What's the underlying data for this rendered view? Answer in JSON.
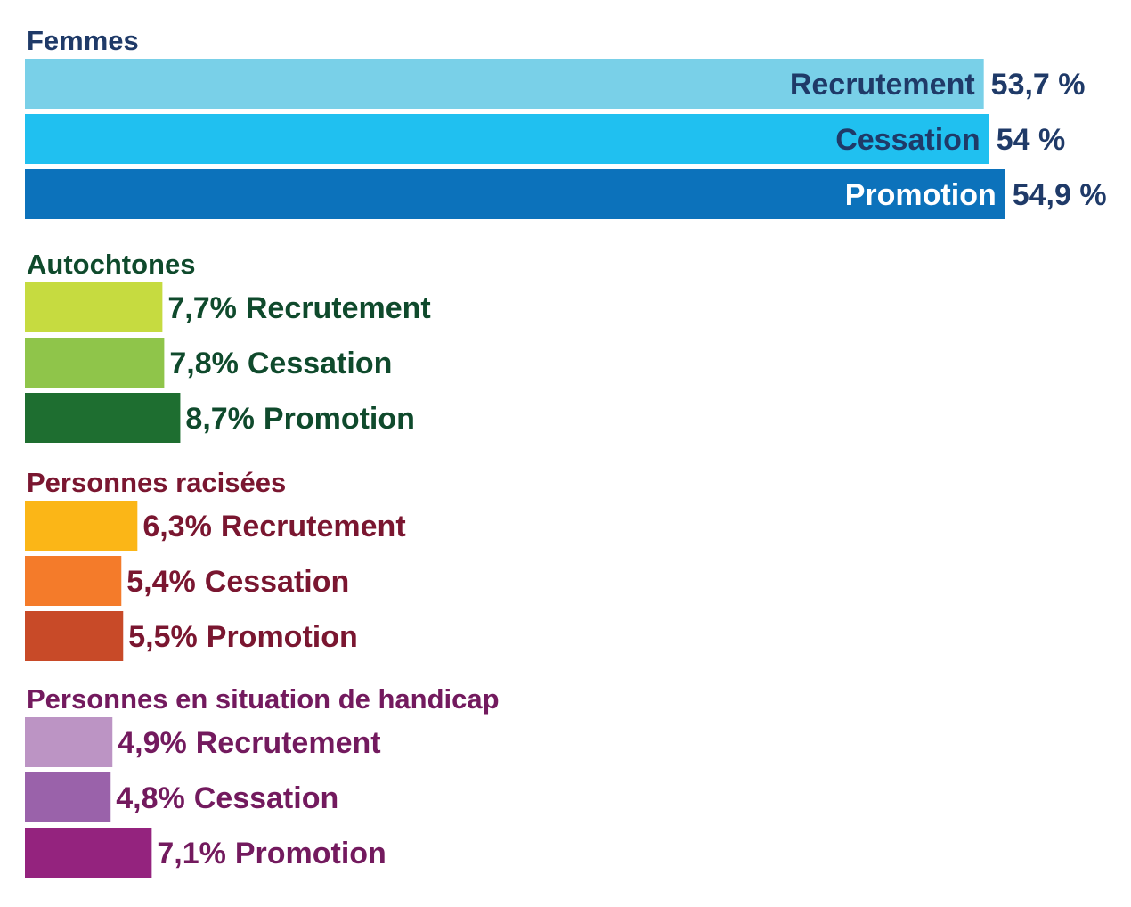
{
  "chart_data": [
    {
      "type": "bar",
      "title": "Femmes",
      "title_color": "#1f3a68",
      "label_color": "#1f3a68",
      "label_style": "category-inside-value-outside",
      "categories": [
        "Recrutement",
        "Cessation",
        "Promotion"
      ],
      "values": [
        53.7,
        54,
        54.9
      ],
      "value_labels": [
        "53,7 %",
        "54 %",
        "54,9 %"
      ],
      "colors": [
        "#79d0e8",
        "#20c0f0",
        "#0c72bb"
      ],
      "category_label_colors": [
        "#1f3a68",
        "#1f3a68",
        "#ffffff"
      ]
    },
    {
      "type": "bar",
      "title": "Autochtones",
      "title_color": "#0f4a2c",
      "label_color": "#0f4a2c",
      "label_style": "combined-outside",
      "categories": [
        "Recrutement",
        "Cessation",
        "Promotion"
      ],
      "values": [
        7.7,
        7.8,
        8.7
      ],
      "value_labels": [
        "7,7%",
        "7,8%",
        "8,7%"
      ],
      "colors": [
        "#c6db40",
        "#8fc54a",
        "#1e6e30"
      ]
    },
    {
      "type": "bar",
      "title": "Personnes racisées",
      "title_color": "#7a1630",
      "label_color": "#7a1630",
      "label_style": "combined-outside",
      "categories": [
        "Recrutement",
        "Cessation",
        "Promotion"
      ],
      "values": [
        6.3,
        5.4,
        5.5
      ],
      "value_labels": [
        "6,3%",
        "5,4%",
        "5,5%"
      ],
      "colors": [
        "#fbb617",
        "#f47b2a",
        "#c84a28"
      ]
    },
    {
      "type": "bar",
      "title": "Personnes en situation de handicap",
      "title_color": "#731a5e",
      "label_color": "#731a5e",
      "label_style": "combined-outside",
      "categories": [
        "Recrutement",
        "Cessation",
        "Promotion"
      ],
      "values": [
        4.9,
        4.8,
        7.1
      ],
      "value_labels": [
        "4,9%",
        "4,8%",
        "7,1%"
      ],
      "colors": [
        "#bc94c4",
        "#9a62aa",
        "#94237e"
      ]
    }
  ]
}
